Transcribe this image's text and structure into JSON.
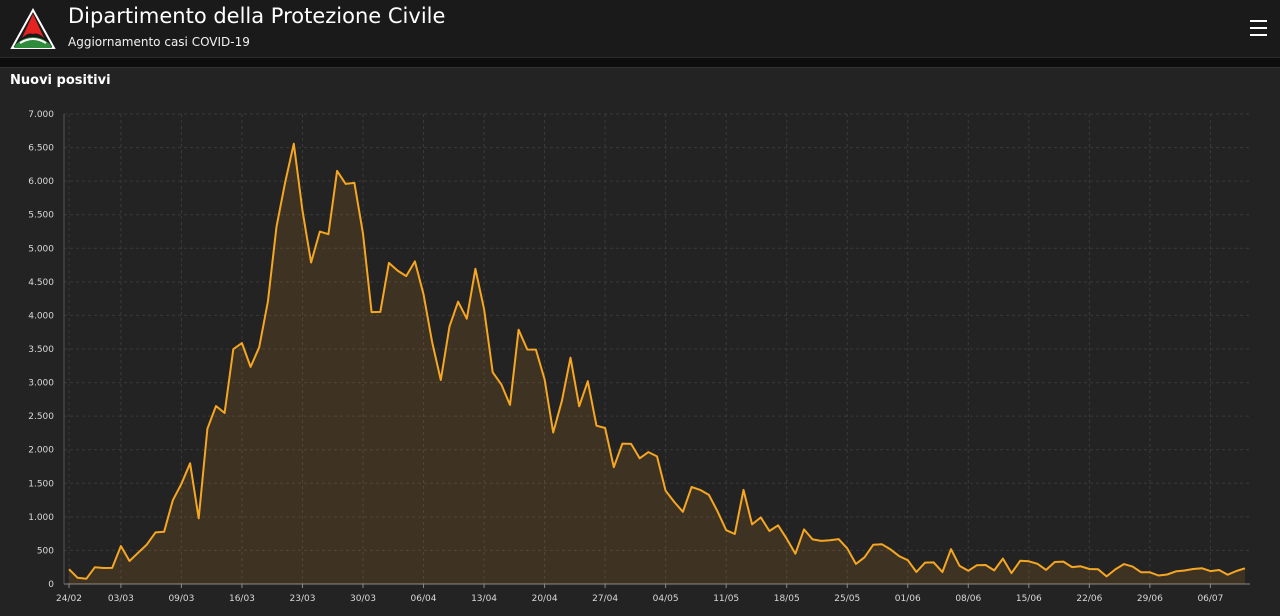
{
  "header": {
    "title": "Dipartimento della Protezione Civile",
    "subtitle": "Aggiornamento casi COVID-19",
    "logo_icon": "protezione-civile-logo-icon",
    "menu_icon": "hamburger-menu-icon"
  },
  "colors": {
    "line": "#f5a623",
    "background": "#232323"
  },
  "chart_data": {
    "type": "area",
    "title": "Nuovi positivi",
    "xlabel": "",
    "ylabel": "",
    "ylim": [
      0,
      7000
    ],
    "y_ticks": [
      0,
      500,
      1000,
      1500,
      2000,
      2500,
      3000,
      3500,
      4000,
      4500,
      5000,
      5500,
      6000,
      6500,
      7000
    ],
    "y_tick_labels": [
      "0",
      "500",
      "1.000",
      "1.500",
      "2.000",
      "2.500",
      "3.000",
      "3.500",
      "4.000",
      "4.500",
      "5.000",
      "5.500",
      "6.000",
      "6.500",
      "7.000"
    ],
    "grid": true,
    "x_start": "2020-02-24",
    "x_tick_labels": [
      "24/02",
      "03/03",
      "09/03",
      "16/03",
      "23/03",
      "30/03",
      "06/04",
      "13/04",
      "20/04",
      "27/04",
      "04/05",
      "11/05",
      "18/05",
      "25/05",
      "01/06",
      "08/06",
      "15/06",
      "22/06",
      "29/06",
      "06/07"
    ],
    "series": [
      {
        "values": [
          221,
          93,
          78,
          250,
          238,
          240,
          566,
          342,
          466,
          587,
          769,
          778,
          1247,
          1492,
          1797,
          977,
          2313,
          2651,
          2547,
          3497,
          3590,
          3233,
          3526,
          4207,
          5322,
          5986,
          6557,
          5560,
          4789,
          5249,
          5210,
          6153,
          5959,
          5974,
          5217,
          4050,
          4053,
          4782,
          4668,
          4585,
          4805,
          4316,
          3599,
          3039,
          3836,
          4204,
          3951,
          4694,
          4092,
          3153,
          2972,
          2667,
          3786,
          3493,
          3491,
          3047,
          2256,
          2729,
          3370,
          2646,
          3021,
          2357,
          2324,
          1739,
          2091,
          2086,
          1872,
          1965,
          1900,
          1389,
          1221,
          1075,
          1444,
          1401,
          1327,
          1083,
          802,
          744,
          1402,
          888,
          992,
          789,
          875,
          675,
          451,
          813,
          665,
          642,
          652,
          669,
          531,
          300,
          397,
          584,
          593,
          516,
          416,
          355,
          178,
          318,
          321,
          177,
          518,
          270,
          197,
          280,
          283,
          202,
          379,
          163,
          346,
          338,
          301,
          210,
          328,
          333,
          251,
          264,
          224,
          221,
          113,
          218,
          296,
          259,
          175,
          174,
          126,
          142,
          187,
          201,
          223,
          235,
          192,
          208,
          138,
          193,
          234
        ]
      }
    ]
  }
}
